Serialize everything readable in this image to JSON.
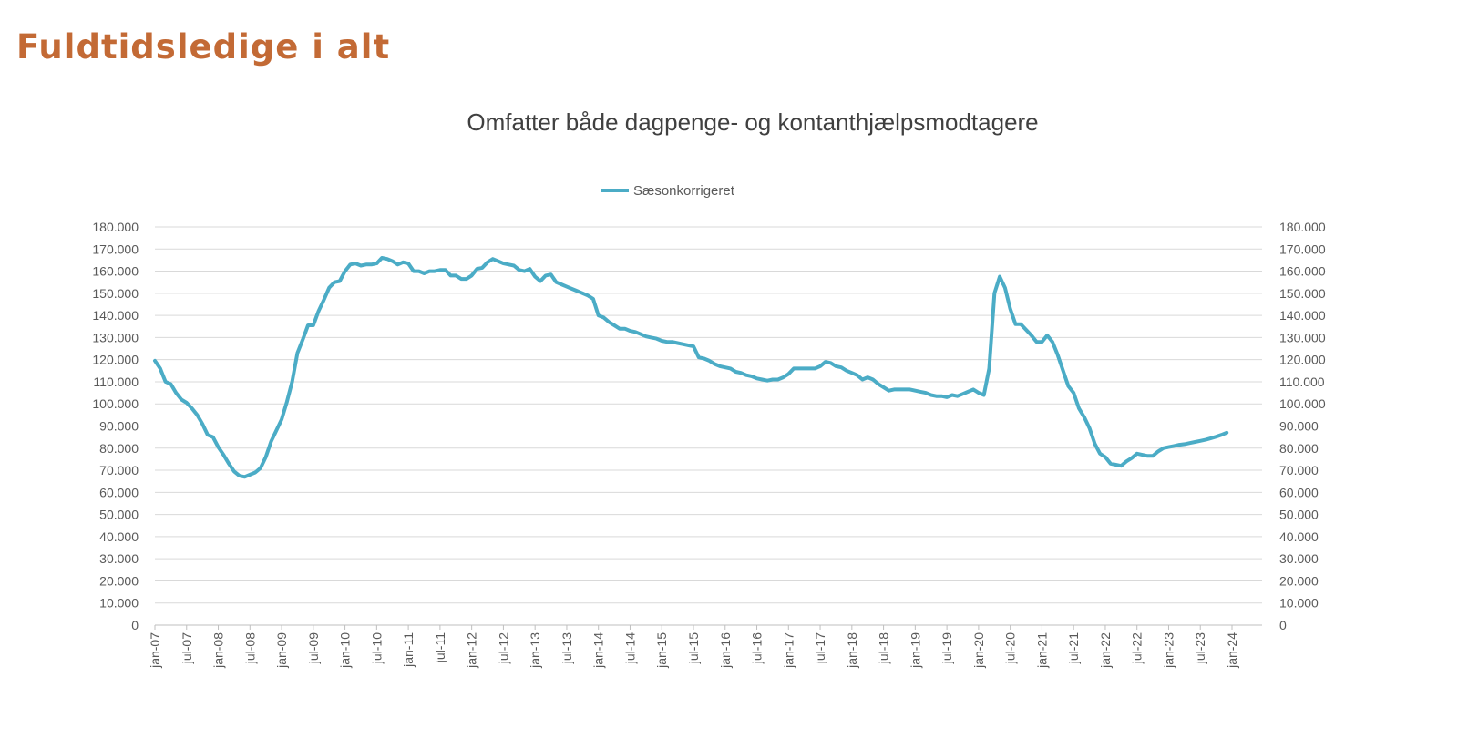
{
  "page": {
    "title": "Fuldtidsledige i alt"
  },
  "colors": {
    "title": "#C36A35",
    "series": "#4BACC6",
    "grid": "#D9D9D9",
    "text": "#595959"
  },
  "chart_data": {
    "type": "line",
    "title": "Omfatter både dagpenge- og kontanthjælpsmodtagere",
    "xlabel": "",
    "ylabel": "",
    "ylim": [
      0,
      180000
    ],
    "grid": true,
    "legend_placement": "top",
    "secondary_axis": "right (same scale)",
    "y_ticks": [
      "0",
      "10.000",
      "20.000",
      "30.000",
      "40.000",
      "50.000",
      "60.000",
      "70.000",
      "80.000",
      "90.000",
      "100.000",
      "110.000",
      "120.000",
      "130.000",
      "140.000",
      "150.000",
      "160.000",
      "170.000",
      "180.000"
    ],
    "x_ticks": [
      "jan-07",
      "jul-07",
      "jan-08",
      "jul-08",
      "jan-09",
      "jul-09",
      "jan-10",
      "jul-10",
      "jan-11",
      "jul-11",
      "jan-12",
      "jul-12",
      "jan-13",
      "jul-13",
      "jan-14",
      "jul-14",
      "jan-15",
      "jul-15",
      "jan-16",
      "jul-16",
      "jan-17",
      "jul-17",
      "jan-18",
      "jul-18",
      "jan-19",
      "jul-19",
      "jan-20",
      "jul-20",
      "jan-21",
      "jul-21",
      "jan-22",
      "jul-22",
      "jan-23",
      "jul-23",
      "jan-24"
    ],
    "x": [
      "2007-01",
      "2007-02",
      "2007-03",
      "2007-04",
      "2007-05",
      "2007-06",
      "2007-07",
      "2007-08",
      "2007-09",
      "2007-10",
      "2007-11",
      "2007-12",
      "2008-01",
      "2008-02",
      "2008-03",
      "2008-04",
      "2008-05",
      "2008-06",
      "2008-07",
      "2008-08",
      "2008-09",
      "2008-10",
      "2008-11",
      "2008-12",
      "2009-01",
      "2009-02",
      "2009-03",
      "2009-04",
      "2009-05",
      "2009-06",
      "2009-07",
      "2009-08",
      "2009-09",
      "2009-10",
      "2009-11",
      "2009-12",
      "2010-01",
      "2010-02",
      "2010-03",
      "2010-04",
      "2010-05",
      "2010-06",
      "2010-07",
      "2010-08",
      "2010-09",
      "2010-10",
      "2010-11",
      "2010-12",
      "2011-01",
      "2011-02",
      "2011-03",
      "2011-04",
      "2011-05",
      "2011-06",
      "2011-07",
      "2011-08",
      "2011-09",
      "2011-10",
      "2011-11",
      "2011-12",
      "2012-01",
      "2012-02",
      "2012-03",
      "2012-04",
      "2012-05",
      "2012-06",
      "2012-07",
      "2012-08",
      "2012-09",
      "2012-10",
      "2012-11",
      "2012-12",
      "2013-01",
      "2013-02",
      "2013-03",
      "2013-04",
      "2013-05",
      "2013-06",
      "2013-07",
      "2013-08",
      "2013-09",
      "2013-10",
      "2013-11",
      "2013-12",
      "2014-01",
      "2014-02",
      "2014-03",
      "2014-04",
      "2014-05",
      "2014-06",
      "2014-07",
      "2014-08",
      "2014-09",
      "2014-10",
      "2014-11",
      "2014-12",
      "2015-01",
      "2015-02",
      "2015-03",
      "2015-04",
      "2015-05",
      "2015-06",
      "2015-07",
      "2015-08",
      "2015-09",
      "2015-10",
      "2015-11",
      "2015-12",
      "2016-01",
      "2016-02",
      "2016-03",
      "2016-04",
      "2016-05",
      "2016-06",
      "2016-07",
      "2016-08",
      "2016-09",
      "2016-10",
      "2016-11",
      "2016-12",
      "2017-01",
      "2017-02",
      "2017-03",
      "2017-04",
      "2017-05",
      "2017-06",
      "2017-07",
      "2017-08",
      "2017-09",
      "2017-10",
      "2017-11",
      "2017-12",
      "2018-01",
      "2018-02",
      "2018-03",
      "2018-04",
      "2018-05",
      "2018-06",
      "2018-07",
      "2018-08",
      "2018-09",
      "2018-10",
      "2018-11",
      "2018-12",
      "2019-01",
      "2019-02",
      "2019-03",
      "2019-04",
      "2019-05",
      "2019-06",
      "2019-07",
      "2019-08",
      "2019-09",
      "2019-10",
      "2019-11",
      "2019-12",
      "2020-01",
      "2020-02",
      "2020-03",
      "2020-04",
      "2020-05",
      "2020-06",
      "2020-07",
      "2020-08",
      "2020-09",
      "2020-10",
      "2020-11",
      "2020-12",
      "2021-01",
      "2021-02",
      "2021-03",
      "2021-04",
      "2021-05",
      "2021-06",
      "2021-07",
      "2021-08",
      "2021-09",
      "2021-10",
      "2021-11",
      "2021-12",
      "2022-01",
      "2022-02",
      "2022-03",
      "2022-04",
      "2022-05",
      "2022-06",
      "2022-07",
      "2022-08",
      "2022-09",
      "2022-10",
      "2022-11",
      "2022-12",
      "2023-01",
      "2023-02",
      "2023-03",
      "2023-04",
      "2023-05",
      "2023-06",
      "2023-07",
      "2023-08",
      "2023-09",
      "2023-10",
      "2023-11",
      "2023-12"
    ],
    "series": [
      {
        "name": "Sæsonkorrigeret",
        "values": [
          119500,
          116000,
          110000,
          109000,
          105000,
          102000,
          100500,
          98000,
          95000,
          91000,
          86000,
          85000,
          80500,
          77000,
          73000,
          69500,
          67500,
          67000,
          68000,
          69000,
          71000,
          76000,
          83000,
          88000,
          93000,
          101000,
          110000,
          123000,
          129000,
          135500,
          135500,
          142000,
          147000,
          152500,
          155000,
          155500,
          160000,
          163000,
          163500,
          162500,
          163000,
          163000,
          163500,
          166000,
          165500,
          164500,
          163000,
          164000,
          163500,
          160000,
          160000,
          159000,
          160000,
          160000,
          160500,
          160500,
          158000,
          158000,
          156500,
          156500,
          158000,
          161000,
          161500,
          164000,
          165500,
          164500,
          163500,
          163000,
          162500,
          160500,
          160000,
          161000,
          157500,
          155500,
          158000,
          158500,
          155000,
          154000,
          153000,
          152000,
          151000,
          150000,
          149000,
          147500,
          140000,
          139000,
          137000,
          135500,
          134000,
          134000,
          133000,
          132500,
          131500,
          130500,
          130000,
          129500,
          128500,
          128000,
          128000,
          127500,
          127000,
          126500,
          126000,
          121000,
          120500,
          119500,
          118000,
          117000,
          116500,
          116000,
          114500,
          114000,
          113000,
          112500,
          111500,
          111000,
          110500,
          111000,
          111000,
          112000,
          113500,
          116000,
          116000,
          116000,
          116000,
          116000,
          117000,
          119000,
          118500,
          117000,
          116500,
          115000,
          114000,
          113000,
          111000,
          112000,
          111000,
          109000,
          107500,
          106000,
          106500,
          106500,
          106500,
          106500,
          106000,
          105500,
          105000,
          104000,
          103500,
          103500,
          103000,
          104000,
          103500,
          104500,
          105500,
          106500,
          105000,
          104000,
          116000,
          150000,
          157500,
          152500,
          143000,
          136000,
          136000,
          133500,
          131000,
          128000,
          128000,
          131000,
          128000,
          122000,
          115000,
          108000,
          105000,
          98000,
          94000,
          89000,
          82000,
          77500,
          76000,
          73000,
          72500,
          72000,
          74000,
          75500,
          77500,
          77000,
          76500,
          76500,
          78500,
          80000,
          80500,
          81000,
          81500,
          81800,
          82300,
          82800,
          83300,
          83800,
          84500,
          85200,
          86000,
          87000
        ]
      }
    ]
  }
}
